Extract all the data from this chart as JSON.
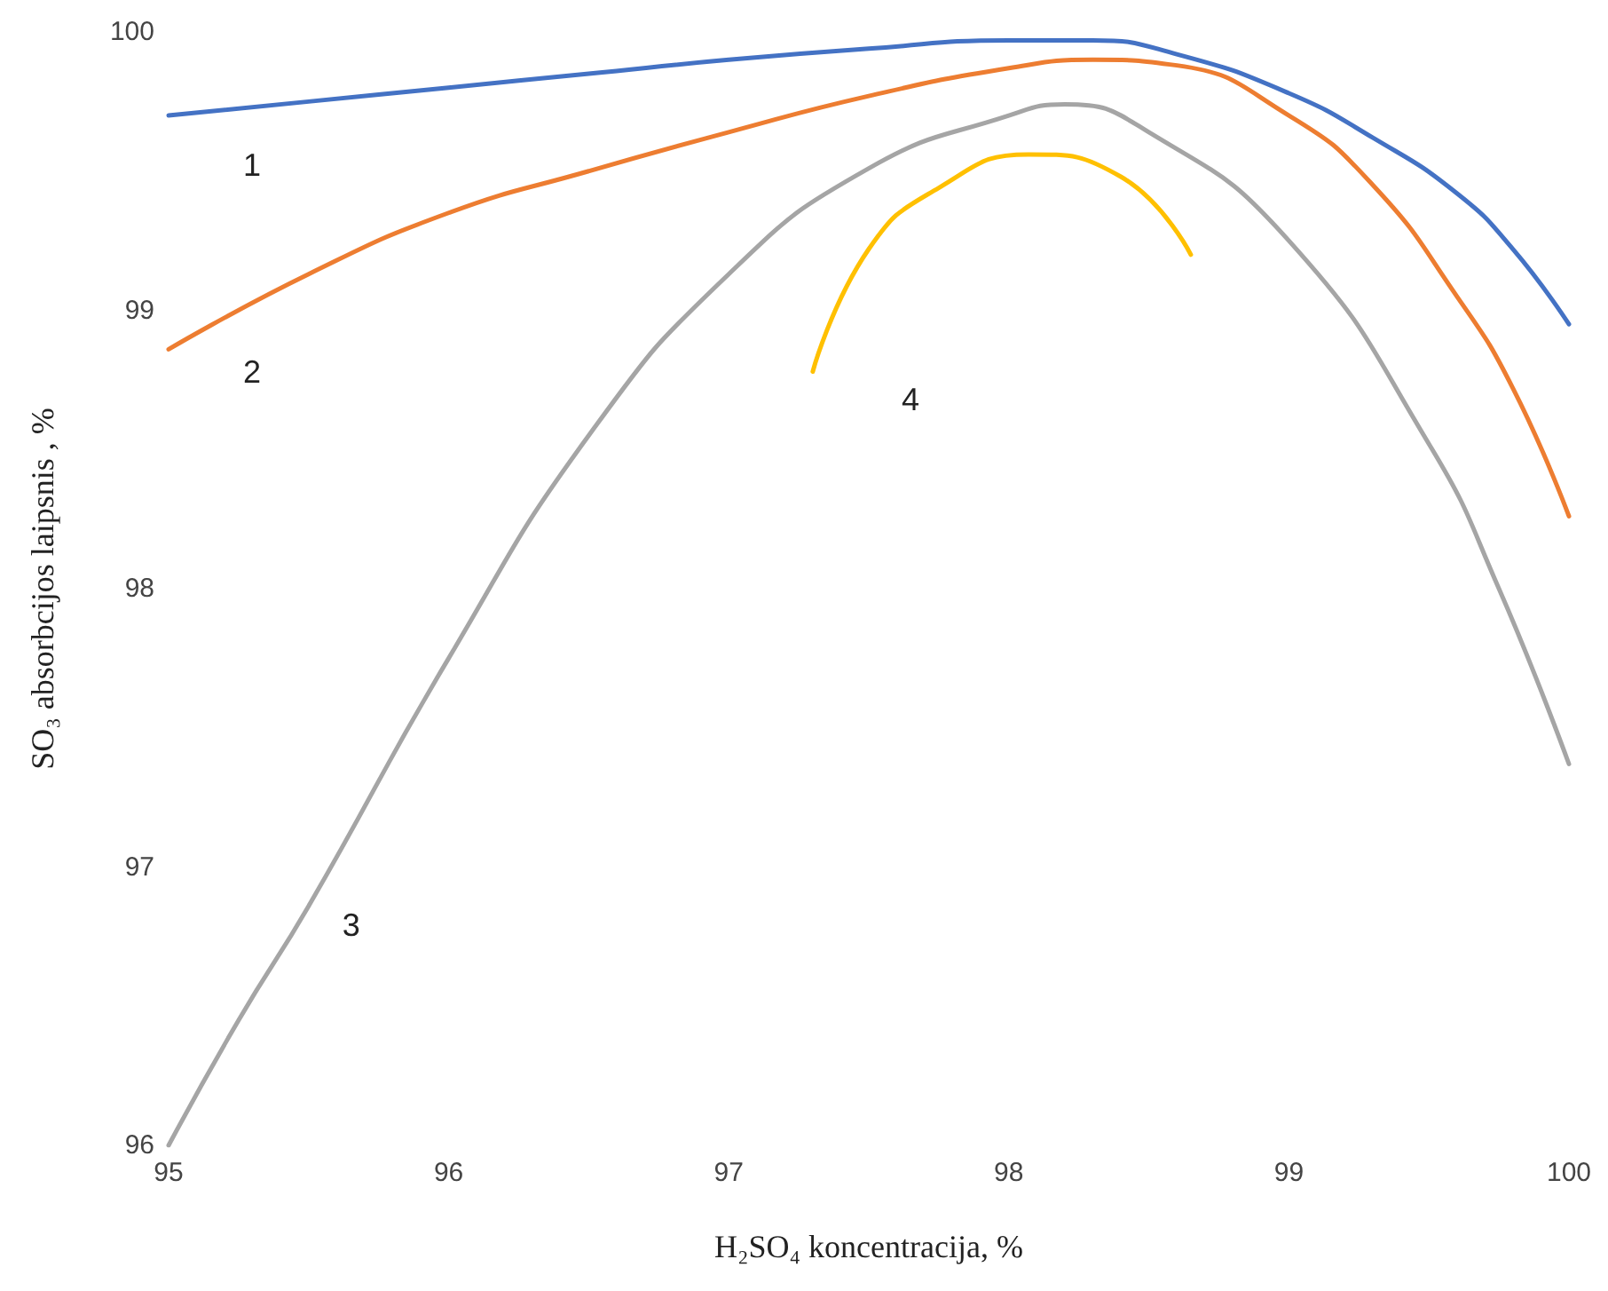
{
  "chart_data": {
    "type": "line",
    "xlabel": "H₂SO₄ koncentracija, %",
    "ylabel": "SO₃ absorbcijos laipsnis , %",
    "xlim": [
      95,
      100
    ],
    "xticks": [
      95,
      96,
      97,
      98,
      99,
      100
    ],
    "ylim": [
      96,
      100
    ],
    "yticks": [
      96,
      97,
      98,
      99,
      100
    ],
    "grid": false,
    "marker": "none",
    "line_style": "solid",
    "series": [
      {
        "name": "1",
        "color": "#4472c4",
        "x": [
          95,
          95.5,
          96,
          96.5,
          97,
          97.5,
          98,
          98.3,
          98.6,
          99,
          99.3,
          99.6,
          99.8,
          100
        ],
        "values": [
          99.7,
          99.75,
          99.8,
          99.85,
          99.9,
          99.94,
          99.97,
          99.97,
          99.92,
          99.78,
          99.62,
          99.42,
          99.22,
          98.95
        ]
      },
      {
        "name": "2",
        "color": "#ed7d31",
        "x": [
          95,
          95.5,
          96,
          96.5,
          97,
          97.5,
          98,
          98.3,
          98.6,
          99,
          99.3,
          99.6,
          99.8,
          100
        ],
        "values": [
          98.86,
          99.13,
          99.35,
          99.5,
          99.64,
          99.77,
          99.87,
          99.9,
          99.88,
          99.7,
          99.45,
          99.05,
          98.72,
          98.26
        ]
      },
      {
        "name": "3",
        "color": "#a5a5a5",
        "x": [
          95,
          95.25,
          95.5,
          96,
          96.5,
          97,
          97.5,
          98,
          98.2,
          98.5,
          99,
          99.5,
          99.75,
          100
        ],
        "values": [
          96.0,
          96.45,
          96.86,
          97.75,
          98.55,
          99.13,
          99.51,
          99.7,
          99.74,
          99.64,
          99.25,
          98.52,
          98.0,
          97.37
        ]
      },
      {
        "name": "4",
        "color": "#ffc000",
        "x": [
          97.3,
          97.5,
          97.75,
          98.07,
          98.4,
          98.65
        ],
        "values": [
          98.78,
          99.22,
          99.44,
          99.56,
          99.48,
          99.2
        ]
      }
    ]
  }
}
